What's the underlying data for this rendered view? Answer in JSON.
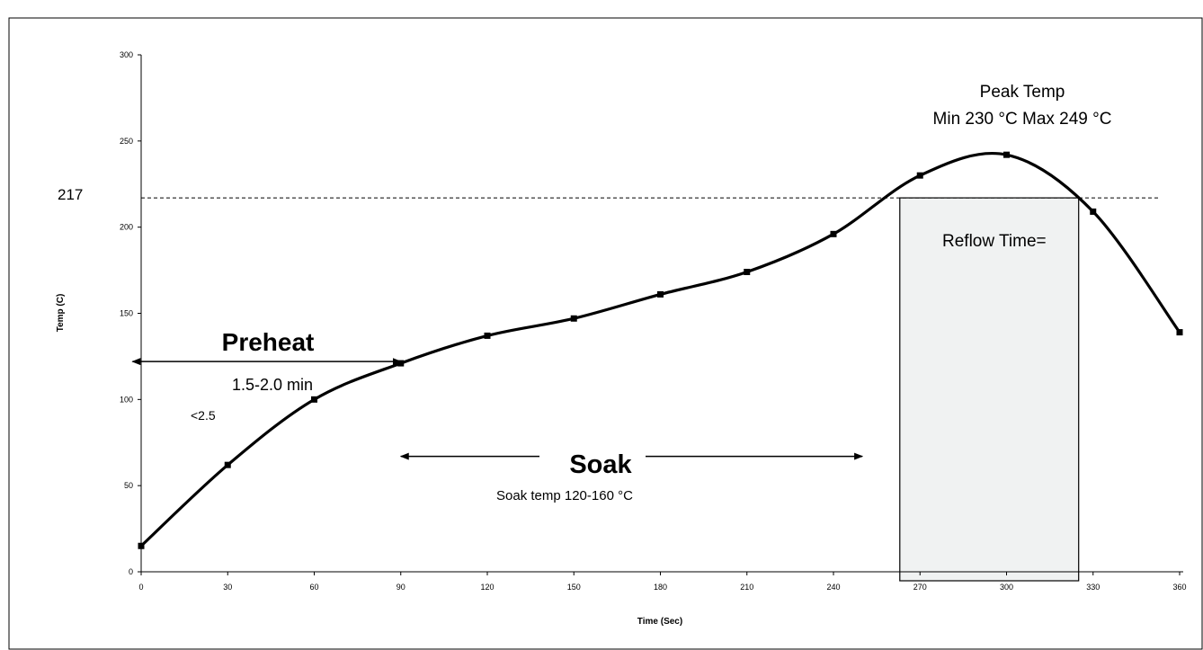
{
  "chart_data": {
    "type": "line",
    "title": "",
    "xlabel": "Time (Sec)",
    "ylabel": "Temp (C)",
    "xlim": [
      0,
      360
    ],
    "ylim": [
      0,
      300
    ],
    "x_ticks": [
      0,
      30,
      60,
      90,
      120,
      150,
      180,
      210,
      240,
      270,
      300,
      330,
      360
    ],
    "y_ticks": [
      0,
      50,
      100,
      150,
      200,
      250,
      300
    ],
    "grid": false,
    "series": [
      {
        "x": [
          0,
          30,
          60,
          90,
          120,
          150,
          180,
          210,
          240,
          270,
          300,
          330,
          360
        ],
        "y": [
          15,
          62,
          100,
          121,
          137,
          147,
          161,
          174,
          196,
          230,
          242,
          209,
          139
        ],
        "color": "#000000"
      }
    ],
    "reference_line": {
      "value": 217,
      "label": "217"
    },
    "reflow_region": {
      "x_start": 263,
      "x_end": 325,
      "y_top": 217,
      "label": "Reflow Time=",
      "fill": "#f0f2f2"
    },
    "annotations": {
      "peak_title": "Peak Temp",
      "peak_range": "Min 230 °C Max 249 °C",
      "preheat": "Preheat",
      "preheat_time": "1.5-2.0 min",
      "rate": "<2.5",
      "soak": "Soak",
      "soak_temp": "Soak temp 120-160 °C"
    },
    "arrows": {
      "preheat": {
        "x_start": -3,
        "x_end": 90,
        "y": 122
      },
      "soak": {
        "x_start": 90,
        "x_end": 250,
        "y": 67
      }
    }
  }
}
